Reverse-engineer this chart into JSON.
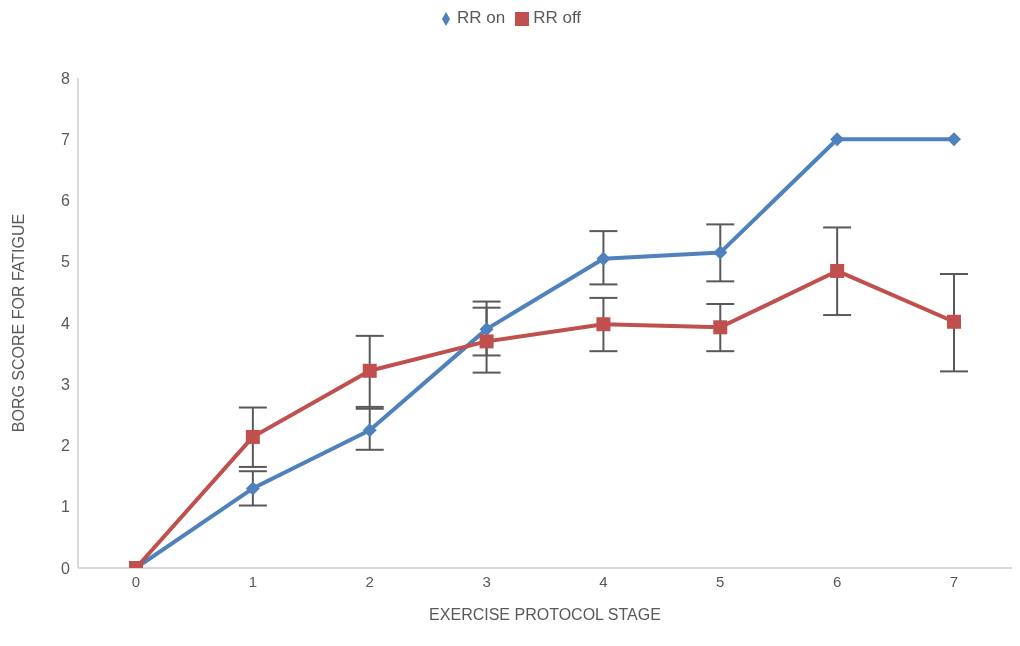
{
  "chart_data": {
    "type": "line",
    "xlabel": "EXERCISE PROTOCOL STAGE",
    "ylabel": "BORG SCORE FOR FATIGUE",
    "categories": [
      "0",
      "1",
      "2",
      "3",
      "4",
      "5",
      "6",
      "7"
    ],
    "series": [
      {
        "name": "RR on",
        "color": "#4f81bd",
        "marker": "diamond",
        "values": [
          0,
          1.3,
          2.25,
          3.9,
          5.05,
          5.15,
          7,
          7
        ],
        "errors": [
          null,
          [
            1.02,
            1.58
          ],
          [
            1.93,
            2.6
          ],
          [
            3.47,
            4.35
          ],
          [
            4.63,
            5.5
          ],
          [
            4.68,
            5.61
          ],
          null,
          null
        ]
      },
      {
        "name": "RR off",
        "color": "#c0504d",
        "marker": "square",
        "values": [
          0,
          2.14,
          3.22,
          3.7,
          3.98,
          3.93,
          4.85,
          4.02
        ],
        "errors": [
          null,
          [
            1.65,
            2.62
          ],
          [
            2.63,
            3.79
          ],
          [
            3.19,
            4.25
          ],
          [
            3.54,
            4.41
          ],
          [
            3.54,
            4.31
          ],
          [
            4.13,
            5.56
          ],
          [
            3.21,
            4.8
          ]
        ]
      }
    ],
    "ylim": [
      0,
      8
    ],
    "yticks": [
      0,
      1,
      2,
      3,
      4,
      5,
      6,
      7,
      8
    ],
    "grid": false,
    "legend": "top",
    "line_style": "solid"
  }
}
